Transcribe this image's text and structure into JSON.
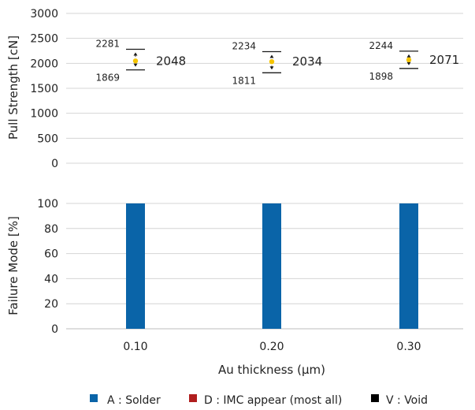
{
  "chart_data": [
    {
      "type": "scatter",
      "ylabel": "Pull Strength [cN]",
      "ylim": [
        0,
        3000
      ],
      "yticks": [
        0,
        500,
        1000,
        1500,
        2000,
        2500,
        3000
      ],
      "grid": true,
      "categories": [
        "0.10",
        "0.20",
        "0.30"
      ],
      "points": [
        {
          "category": "0.10",
          "mean": 2048,
          "max": 2281,
          "min": 1869
        },
        {
          "category": "0.20",
          "mean": 2034,
          "max": 2234,
          "min": 1811
        },
        {
          "category": "0.30",
          "mean": 2071,
          "max": 2244,
          "min": 1898
        }
      ],
      "mean_color": "#f5c400"
    },
    {
      "type": "bar",
      "stacked": true,
      "ylabel": "Failure Mode [%]",
      "xlabel": "Au thickness (μm)",
      "ylim": [
        0,
        100
      ],
      "yticks": [
        0,
        20,
        40,
        60,
        80,
        100
      ],
      "grid": true,
      "categories": [
        "0.10",
        "0.20",
        "0.30"
      ],
      "series": [
        {
          "name": "A : Solder",
          "color": "#0a64a8",
          "values": [
            100,
            100,
            100
          ]
        },
        {
          "name": "D : IMC appear (most all)",
          "color": "#b01e1e",
          "values": [
            0,
            0,
            0
          ]
        },
        {
          "name": "V : Void",
          "color": "#000000",
          "values": [
            0,
            0,
            0
          ]
        }
      ],
      "legend": "bottom"
    }
  ]
}
